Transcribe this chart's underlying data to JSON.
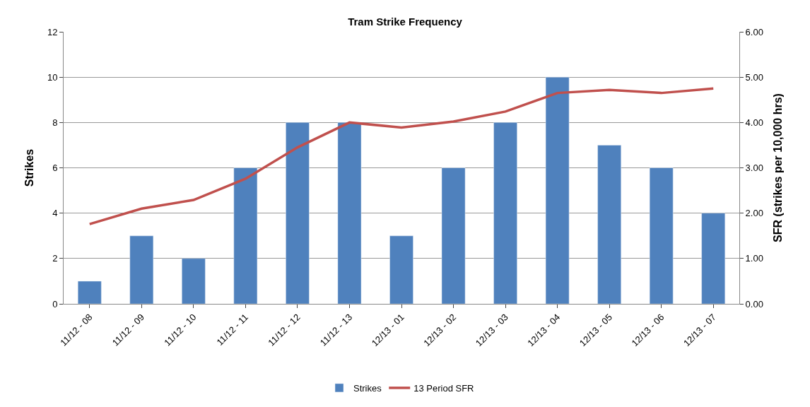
{
  "chart_data": {
    "type": "bar",
    "title": "Tram Strike Frequency",
    "ylabel": "Strikes",
    "y2label": "SFR (strikes per 10,000 hrs)",
    "categories": [
      "11/12 - 08",
      "11/12 - 09",
      "11/12 - 10",
      "11/12 - 11",
      "11/12 - 12",
      "11/12 - 13",
      "12/13 - 01",
      "12/13 - 02",
      "12/13 - 03",
      "12/13 - 04",
      "12/13 - 05",
      "12/13 - 06",
      "12/13 - 07"
    ],
    "series": [
      {
        "name": "Strikes",
        "color": "#4f81bd",
        "values": [
          1,
          3,
          2,
          6,
          8,
          8,
          3,
          6,
          8,
          10,
          7,
          6,
          4
        ]
      },
      {
        "name": "13 Period SFR",
        "type": "line",
        "axis": "y2",
        "color": "#c0504d",
        "values": [
          1.76,
          2.1,
          2.29,
          2.76,
          3.45,
          4.0,
          3.89,
          4.02,
          4.24,
          4.65,
          4.72,
          4.65,
          4.75
        ]
      }
    ],
    "ylim": [
      0,
      12
    ],
    "yticks": [
      0,
      2,
      4,
      6,
      8,
      10,
      12
    ],
    "y2lim": [
      0,
      6
    ],
    "y2ticks": [
      {
        "value": 0,
        "label": "0.00"
      },
      {
        "value": 1,
        "label": "1.00"
      },
      {
        "value": 2,
        "label": "2.00"
      },
      {
        "value": 3,
        "label": "3.00"
      },
      {
        "value": 4,
        "label": "4.00"
      },
      {
        "value": 5,
        "label": "5.00"
      },
      {
        "value": 6,
        "label": "6.00"
      }
    ],
    "grid": "y",
    "legend": "bottom",
    "marker": "none"
  }
}
